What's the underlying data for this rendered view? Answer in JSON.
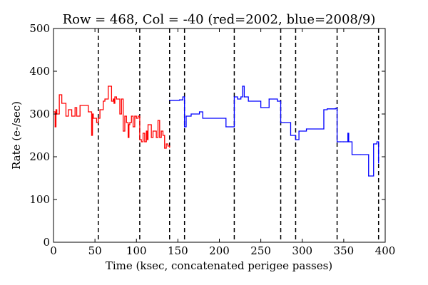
{
  "chart_data": {
    "type": "line",
    "title": "Row = 468, Col = -40 (red=2002, blue=2008/9)",
    "xlabel": "Time (ksec, concatenated perigee passes)",
    "ylabel": "Rate (e-/sec)",
    "xlim": [
      0,
      400
    ],
    "ylim": [
      0,
      500
    ],
    "xticks": [
      0,
      50,
      100,
      150,
      200,
      250,
      300,
      350,
      400
    ],
    "yticks": [
      0,
      100,
      200,
      300,
      400,
      500
    ],
    "grid": false,
    "dividers": {
      "style": "dashed",
      "color": "#000000",
      "x": [
        54,
        104,
        140,
        158,
        218,
        274,
        292,
        342,
        392
      ]
    },
    "series": [
      {
        "color": "#ff0000",
        "step": true,
        "x": [
          0,
          2,
          3,
          4,
          7,
          10,
          15,
          18,
          22,
          26,
          28,
          32,
          42,
          46,
          47,
          48,
          52,
          54,
          56,
          60,
          62,
          66,
          70,
          72,
          73,
          74,
          76,
          80,
          82,
          84,
          86,
          88,
          90,
          91,
          92,
          94,
          96,
          98,
          100,
          102,
          104,
          106,
          108,
          110,
          112,
          113,
          114,
          118,
          120,
          124,
          126,
          128,
          130,
          132,
          134,
          136,
          138,
          140
        ],
        "y": [
          305,
          270,
          310,
          300,
          345,
          325,
          295,
          310,
          295,
          315,
          295,
          320,
          305,
          250,
          300,
          290,
          280,
          290,
          310,
          330,
          335,
          365,
          330,
          335,
          325,
          340,
          335,
          300,
          335,
          260,
          295,
          280,
          245,
          275,
          280,
          295,
          270,
          295,
          290,
          295,
          240,
          235,
          255,
          235,
          260,
          240,
          275,
          245,
          260,
          245,
          285,
          245,
          260,
          250,
          220,
          230,
          225,
          222
        ]
      },
      {
        "color": "#0000ff",
        "step": true,
        "x": [
          140,
          152,
          156,
          158,
          160,
          166,
          176,
          180,
          208,
          218,
          222,
          226,
          228,
          230,
          235,
          250,
          260,
          270,
          274,
          278,
          286,
          292,
          296,
          305,
          326,
          330,
          340,
          342,
          346,
          350,
          355,
          356,
          360,
          370,
          380,
          386,
          390,
          392
        ],
        "y": [
          332,
          333,
          340,
          270,
          295,
          300,
          305,
          290,
          270,
          340,
          335,
          340,
          365,
          340,
          330,
          315,
          335,
          330,
          280,
          280,
          250,
          240,
          260,
          265,
          310,
          312,
          313,
          235,
          235,
          235,
          255,
          235,
          205,
          205,
          155,
          230,
          235,
          185
        ]
      }
    ]
  }
}
